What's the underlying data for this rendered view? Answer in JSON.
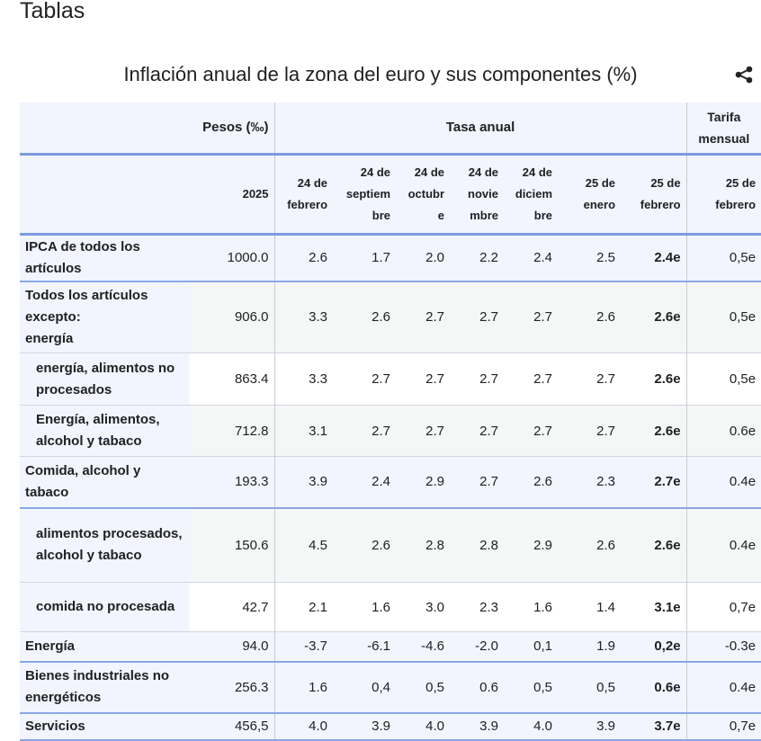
{
  "page": {
    "heading": "Tablas",
    "title": "Inflación anual de la zona del euro y sus componentes (%)",
    "share_icon": "share-icon"
  },
  "header": {
    "pesos": "Pesos (‰)",
    "tasa": "Tasa anual",
    "tarifa": "Tarifa mensual",
    "cols": [
      "2025",
      "24 de febrero",
      "24 de septiem bre",
      "24 de octubr e",
      "24 de novie mbre",
      "24 de diciem bre",
      "25 de enero",
      "25 de febrero",
      "25 de febrero"
    ]
  },
  "rows": [
    {
      "label": "IPCA de todos los artículos",
      "style": "blue",
      "border": "bb",
      "sub": false,
      "values": [
        "1000.0",
        "2.6",
        "1.7",
        "2.0",
        "2.2",
        "2.4",
        "2.5",
        "2.4e",
        "0,5e"
      ]
    },
    {
      "label": "Todos los artículos excepto:\n energía",
      "style": "gray",
      "border": "gb",
      "sub": false,
      "values": [
        "906.0",
        "3.3",
        "2.6",
        "2.7",
        "2.7",
        "2.7",
        "2.6",
        "2.6e",
        "0,5e"
      ]
    },
    {
      "label": "energía, alimentos no procesados",
      "style": "white",
      "border": "gb",
      "sub": true,
      "values": [
        "863.4",
        "3.3",
        "2.7",
        "2.7",
        "2.7",
        "2.7",
        "2.7",
        "2.6e",
        "0,5e"
      ]
    },
    {
      "label": "Energía, alimentos, alcohol y tabaco",
      "style": "gray",
      "border": "gb",
      "sub": true,
      "values": [
        "712.8",
        "3.1",
        "2.7",
        "2.7",
        "2.7",
        "2.7",
        "2.7",
        "2.6e",
        "0.6e"
      ]
    },
    {
      "label": "Comida, alcohol y tabaco",
      "style": "blue",
      "border": "bb",
      "sub": false,
      "values": [
        "193.3",
        "3.9",
        "2.4",
        "2.9",
        "2.7",
        "2.6",
        "2.3",
        "2.7e",
        "0.4e"
      ]
    },
    {
      "label": "alimentos procesados, alcohol y tabaco",
      "style": "gray",
      "border": "gb",
      "sub": true,
      "values": [
        "150.6",
        "4.5",
        "2.6",
        "2.8",
        "2.8",
        "2.9",
        "2.6",
        "2.6e",
        "0.4e"
      ]
    },
    {
      "label": "comida no procesada",
      "style": "white",
      "border": "gb",
      "sub": true,
      "values": [
        "42.7",
        "2.1",
        "1.6",
        "3.0",
        "2.3",
        "1.6",
        "1.4",
        "3.1e",
        "0,7e"
      ]
    },
    {
      "label": "Energía",
      "style": "blue",
      "border": "bb",
      "sub": false,
      "values": [
        "94.0",
        "-3.7",
        "-6.1",
        "-4.6",
        "-2.0",
        "0,1",
        "1.9",
        "0,2e",
        "-0.3e"
      ]
    },
    {
      "label": "Bienes industriales no energéticos",
      "style": "blue",
      "border": "bb",
      "sub": false,
      "values": [
        "256.3",
        "1.6",
        "0,4",
        "0,5",
        "0.6",
        "0,5",
        "0,5",
        "0.6e",
        "0.4e"
      ]
    },
    {
      "label": "Servicios",
      "style": "blue",
      "border": "bb",
      "sub": false,
      "values": [
        "456,5",
        "4.0",
        "3.9",
        "4.0",
        "3.9",
        "4.0",
        "3.9",
        "3.7e",
        "0,7e"
      ]
    }
  ]
}
